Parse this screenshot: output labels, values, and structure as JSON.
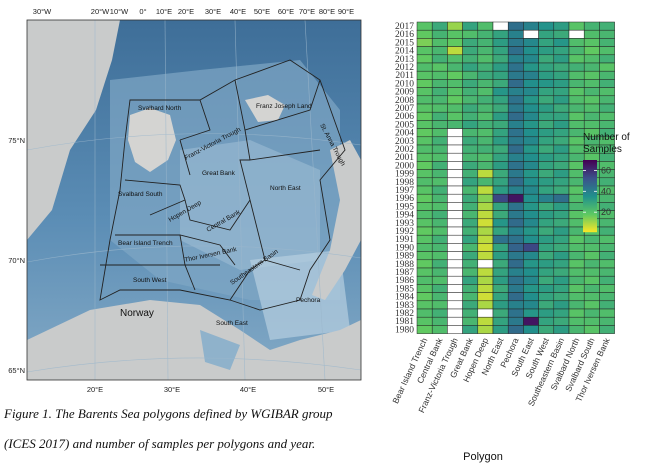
{
  "map": {
    "top_lon_labels": [
      "30°W",
      "20°W",
      "10°W",
      "0°",
      "10°E",
      "20°E",
      "30°E",
      "40°E",
      "50°E",
      "60°E",
      "70°E",
      "80°E",
      "90°E"
    ],
    "bottom_lon_labels": [
      "20°E",
      "30°E",
      "40°E",
      "50°E"
    ],
    "lat_labels": [
      "75°N",
      "70°N",
      "65°N"
    ],
    "polygon_labels": [
      "Svalbard North",
      "Franz-Victoria Trough",
      "Franz Joseph Land",
      "St. Anna Trough",
      "Great Bank",
      "North East",
      "Svalbard South",
      "Hopen Deep",
      "Central Bank",
      "Bear Island Trench",
      "Thor Iversen Bank",
      "Southeastern Basin",
      "South West",
      "Pechora",
      "South East"
    ],
    "land_label": "Norway"
  },
  "chart_data": {
    "type": "heatmap",
    "xlabel": "Polygon",
    "categories": [
      "Bear Island Trench",
      "Central Bank",
      "Franz-Victoria Trough",
      "Great Bank",
      "Hopen Deep",
      "North East",
      "Pechora",
      "South East",
      "South West",
      "Southeastern Basin",
      "Svalbard North",
      "Svalbard South",
      "Thor Iversen Bank"
    ],
    "years": [
      2017,
      2016,
      2015,
      2014,
      2013,
      2012,
      2011,
      2010,
      2009,
      2008,
      2007,
      2006,
      2005,
      2004,
      2003,
      2002,
      2001,
      2000,
      1999,
      1998,
      1997,
      1996,
      1995,
      1994,
      1993,
      1992,
      1991,
      1990,
      1989,
      1988,
      1987,
      1986,
      1985,
      1984,
      1983,
      1982,
      1981,
      1980
    ],
    "values": [
      [
        20,
        28,
        12,
        30,
        22,
        null,
        45,
        40,
        35,
        32,
        20,
        25,
        26
      ],
      [
        18,
        25,
        20,
        22,
        25,
        30,
        40,
        null,
        30,
        28,
        null,
        22,
        24
      ],
      [
        15,
        22,
        18,
        28,
        25,
        32,
        42,
        38,
        30,
        34,
        22,
        20,
        25
      ],
      [
        20,
        24,
        8,
        28,
        24,
        30,
        45,
        36,
        32,
        30,
        24,
        18,
        22
      ],
      [
        18,
        26,
        22,
        26,
        22,
        28,
        40,
        38,
        28,
        32,
        20,
        22,
        26
      ],
      [
        22,
        20,
        24,
        30,
        26,
        32,
        44,
        34,
        30,
        28,
        26,
        24,
        20
      ],
      [
        20,
        22,
        18,
        24,
        28,
        30,
        42,
        40,
        32,
        30,
        22,
        20,
        24
      ],
      [
        18,
        24,
        22,
        28,
        24,
        28,
        46,
        36,
        34,
        32,
        24,
        22,
        26
      ],
      [
        20,
        26,
        20,
        26,
        22,
        34,
        40,
        38,
        30,
        30,
        20,
        24,
        22
      ],
      [
        22,
        24,
        18,
        24,
        26,
        30,
        44,
        34,
        28,
        32,
        22,
        20,
        24
      ],
      [
        20,
        22,
        22,
        28,
        24,
        28,
        42,
        36,
        32,
        28,
        24,
        22,
        26
      ],
      [
        18,
        26,
        20,
        26,
        22,
        32,
        46,
        38,
        30,
        30,
        20,
        24,
        22
      ],
      [
        20,
        24,
        24,
        30,
        26,
        28,
        40,
        34,
        28,
        32,
        22,
        22,
        24
      ],
      [
        18,
        22,
        null,
        24,
        22,
        30,
        44,
        36,
        32,
        30,
        24,
        20,
        26
      ],
      [
        20,
        26,
        null,
        28,
        24,
        32,
        42,
        38,
        30,
        28,
        20,
        24,
        22
      ],
      [
        22,
        24,
        null,
        26,
        26,
        28,
        46,
        34,
        28,
        32,
        22,
        22,
        24
      ],
      [
        20,
        22,
        null,
        24,
        22,
        30,
        40,
        36,
        32,
        30,
        24,
        20,
        26
      ],
      [
        18,
        26,
        null,
        28,
        24,
        32,
        44,
        38,
        30,
        28,
        20,
        24,
        22
      ],
      [
        20,
        24,
        null,
        26,
        8,
        28,
        42,
        34,
        28,
        32,
        22,
        22,
        24
      ],
      [
        22,
        22,
        null,
        30,
        24,
        30,
        46,
        36,
        32,
        30,
        24,
        20,
        26
      ],
      [
        20,
        26,
        null,
        24,
        8,
        32,
        40,
        38,
        30,
        28,
        20,
        24,
        22
      ],
      [
        18,
        24,
        null,
        28,
        14,
        55,
        66,
        36,
        40,
        45,
        22,
        22,
        24
      ],
      [
        20,
        22,
        null,
        26,
        10,
        30,
        44,
        34,
        28,
        32,
        24,
        20,
        26
      ],
      [
        22,
        26,
        null,
        24,
        8,
        28,
        42,
        36,
        32,
        30,
        20,
        24,
        22
      ],
      [
        20,
        24,
        null,
        28,
        6,
        34,
        46,
        38,
        30,
        28,
        22,
        22,
        24
      ],
      [
        18,
        22,
        null,
        26,
        10,
        30,
        40,
        34,
        28,
        32,
        24,
        20,
        26
      ],
      [
        20,
        26,
        null,
        30,
        8,
        44,
        44,
        36,
        32,
        30,
        20,
        24,
        22
      ],
      [
        22,
        24,
        null,
        24,
        6,
        30,
        48,
        55,
        30,
        28,
        22,
        22,
        24
      ],
      [
        20,
        22,
        null,
        28,
        8,
        32,
        42,
        38,
        28,
        32,
        24,
        20,
        26
      ],
      [
        18,
        26,
        null,
        26,
        null,
        28,
        46,
        34,
        32,
        30,
        20,
        24,
        22
      ],
      [
        20,
        24,
        null,
        24,
        8,
        30,
        40,
        36,
        30,
        28,
        22,
        22,
        24
      ],
      [
        22,
        22,
        null,
        30,
        10,
        32,
        44,
        38,
        28,
        32,
        24,
        20,
        26
      ],
      [
        20,
        26,
        null,
        26,
        8,
        28,
        42,
        34,
        32,
        30,
        20,
        24,
        22
      ],
      [
        18,
        24,
        null,
        24,
        6,
        30,
        46,
        36,
        30,
        28,
        22,
        22,
        24
      ],
      [
        20,
        22,
        null,
        28,
        10,
        32,
        40,
        38,
        28,
        32,
        24,
        20,
        26
      ],
      [
        22,
        26,
        null,
        26,
        null,
        28,
        44,
        34,
        32,
        30,
        20,
        24,
        22
      ],
      [
        20,
        24,
        null,
        24,
        8,
        30,
        42,
        66,
        30,
        28,
        22,
        22,
        24
      ],
      [
        18,
        22,
        null,
        30,
        10,
        32,
        46,
        36,
        28,
        32,
        24,
        20,
        26
      ]
    ],
    "legend": {
      "title_lines": [
        "Number of",
        "Samples"
      ],
      "ticks": [
        60,
        40,
        20
      ],
      "min": 1,
      "max": 70
    },
    "missing_color": "#ffffff"
  },
  "caption": {
    "line1": "Figure 1. The Barents Sea polygons defined by WGIBAR group",
    "line2": "(ICES 2017) and number of samples per polygons and year."
  }
}
